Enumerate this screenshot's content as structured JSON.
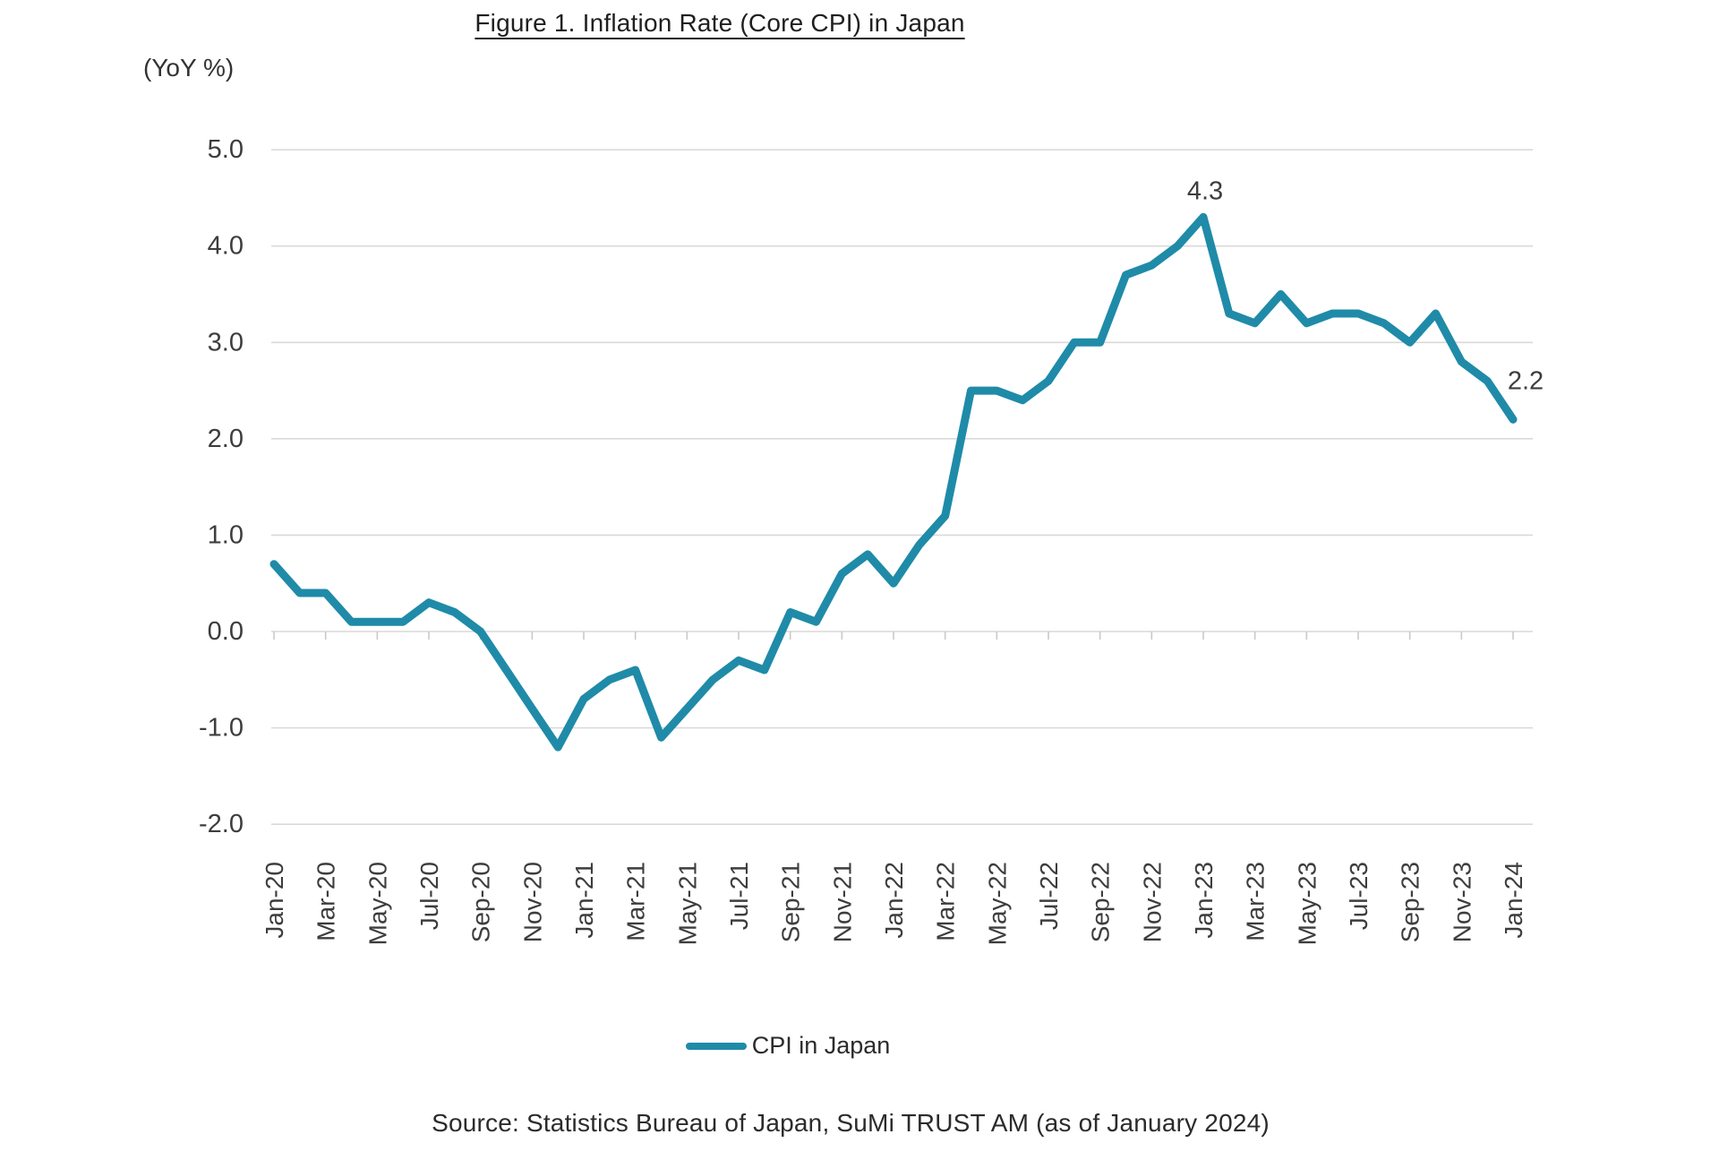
{
  "title": "Figure 1. Inflation Rate (Core CPI) in Japan",
  "axis_unit_label": "(YoY %)",
  "legend": {
    "series_label": "CPI in Japan"
  },
  "source": "Source: Statistics Bureau of Japan, SuMi TRUST AM (as of January 2024)",
  "colors": {
    "line": "#1f8ba8",
    "grid": "#d9d9d9",
    "tick": "#c9c9c9",
    "axis_text": "#3d3d3d",
    "annotation_text": "#3d3d3d"
  },
  "chart_data": {
    "type": "line",
    "title": "Figure 1. Inflation Rate (Core CPI) in Japan",
    "ylabel": "(YoY %)",
    "x": [
      "Jan-20",
      "Feb-20",
      "Mar-20",
      "Apr-20",
      "May-20",
      "Jun-20",
      "Jul-20",
      "Aug-20",
      "Sep-20",
      "Oct-20",
      "Nov-20",
      "Dec-20",
      "Jan-21",
      "Feb-21",
      "Mar-21",
      "Apr-21",
      "May-21",
      "Jun-21",
      "Jul-21",
      "Aug-21",
      "Sep-21",
      "Oct-21",
      "Nov-21",
      "Dec-21",
      "Jan-22",
      "Feb-22",
      "Mar-22",
      "Apr-22",
      "May-22",
      "Jun-22",
      "Jul-22",
      "Aug-22",
      "Sep-22",
      "Oct-22",
      "Nov-22",
      "Dec-22",
      "Jan-23",
      "Feb-23",
      "Mar-23",
      "Apr-23",
      "May-23",
      "Jun-23",
      "Jul-23",
      "Aug-23",
      "Sep-23",
      "Oct-23",
      "Nov-23",
      "Dec-23",
      "Jan-24"
    ],
    "x_label_every": 2,
    "series": [
      {
        "name": "CPI in Japan",
        "values": [
          0.7,
          0.4,
          0.4,
          0.1,
          0.1,
          0.1,
          0.3,
          0.2,
          0.0,
          -0.4,
          -0.8,
          -1.2,
          -0.7,
          -0.5,
          -0.4,
          -1.1,
          -0.8,
          -0.5,
          -0.3,
          -0.4,
          0.2,
          0.1,
          0.6,
          0.8,
          0.5,
          0.9,
          1.2,
          2.5,
          2.5,
          2.4,
          2.6,
          3.0,
          3.0,
          3.7,
          3.8,
          4.0,
          4.3,
          3.3,
          3.2,
          3.5,
          3.2,
          3.3,
          3.3,
          3.2,
          3.0,
          3.3,
          2.8,
          2.6,
          2.2
        ]
      }
    ],
    "ylim": [
      -2.0,
      5.0
    ],
    "ytick_step": 1.0,
    "ytick_format_decimals": 1,
    "grid": "horizontal",
    "legend_position": "bottom",
    "annotations": [
      {
        "x": "Jan-23",
        "value": 4.3,
        "label": "4.3"
      },
      {
        "x": "Jan-24",
        "value": 2.2,
        "label": "2.2"
      }
    ]
  }
}
